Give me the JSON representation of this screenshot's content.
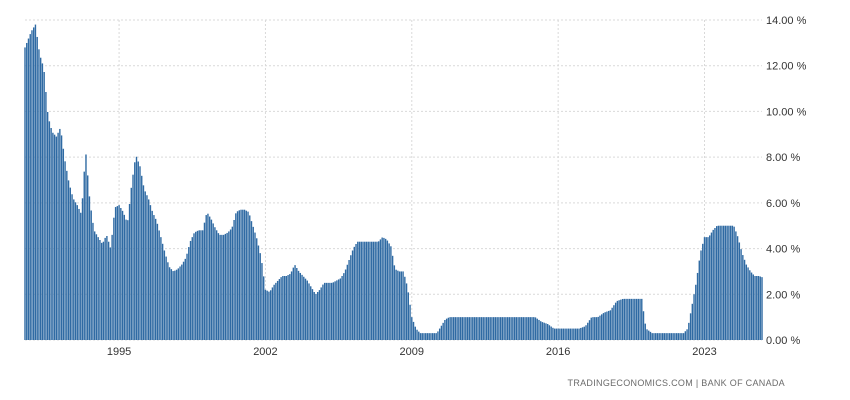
{
  "chart_data": {
    "type": "bar",
    "title": "",
    "xlabel": "",
    "ylabel": "",
    "ylim": [
      0,
      14
    ],
    "y_ticks": [
      "0.00 %",
      "2.00 %",
      "4.00 %",
      "6.00 %",
      "8.00 %",
      "10.00 %",
      "12.00 %",
      "14.00 %"
    ],
    "x_ticks": [
      "1995",
      "2002",
      "2009",
      "2016",
      "2023"
    ],
    "grid": true,
    "bar_color": "#2f6aa3",
    "x_start": 1990.5,
    "x_end": 2025.75,
    "series": [
      {
        "values": [
          [
            1990.5,
            12.8
          ],
          [
            1990.8,
            13.5
          ],
          [
            1991.0,
            13.8
          ],
          [
            1991.2,
            12.5
          ],
          [
            1991.4,
            11.9
          ],
          [
            1991.6,
            9.8
          ],
          [
            1991.8,
            9.1
          ],
          [
            1992.0,
            8.9
          ],
          [
            1992.2,
            9.3
          ],
          [
            1992.4,
            7.9
          ],
          [
            1992.6,
            6.9
          ],
          [
            1992.8,
            6.2
          ],
          [
            1993.0,
            5.9
          ],
          [
            1993.2,
            5.5
          ],
          [
            1993.4,
            8.3
          ],
          [
            1993.6,
            6.1
          ],
          [
            1993.8,
            4.8
          ],
          [
            1994.0,
            4.5
          ],
          [
            1994.2,
            4.2
          ],
          [
            1994.4,
            4.6
          ],
          [
            1994.6,
            4.0
          ],
          [
            1994.8,
            5.8
          ],
          [
            1995.0,
            5.9
          ],
          [
            1995.2,
            5.6
          ],
          [
            1995.4,
            5.1
          ],
          [
            1995.6,
            6.8
          ],
          [
            1995.8,
            8.1
          ],
          [
            1996.0,
            7.6
          ],
          [
            1996.2,
            6.6
          ],
          [
            1996.4,
            6.2
          ],
          [
            1996.6,
            5.6
          ],
          [
            1996.8,
            5.2
          ],
          [
            1997.0,
            4.5
          ],
          [
            1997.2,
            3.8
          ],
          [
            1997.4,
            3.2
          ],
          [
            1997.6,
            3.0
          ],
          [
            1997.8,
            3.1
          ],
          [
            1998.0,
            3.3
          ],
          [
            1998.2,
            3.6
          ],
          [
            1998.4,
            4.3
          ],
          [
            1998.6,
            4.7
          ],
          [
            1998.8,
            4.8
          ],
          [
            1999.0,
            4.8
          ],
          [
            1999.2,
            5.6
          ],
          [
            1999.4,
            5.3
          ],
          [
            1999.6,
            4.9
          ],
          [
            1999.8,
            4.6
          ],
          [
            2000.0,
            4.6
          ],
          [
            2000.2,
            4.7
          ],
          [
            2000.4,
            4.9
          ],
          [
            2000.6,
            5.6
          ],
          [
            2000.8,
            5.7
          ],
          [
            2001.0,
            5.7
          ],
          [
            2001.2,
            5.6
          ],
          [
            2001.4,
            5.0
          ],
          [
            2001.6,
            4.4
          ],
          [
            2001.8,
            3.6
          ],
          [
            2002.0,
            2.2
          ],
          [
            2002.2,
            2.1
          ],
          [
            2002.4,
            2.4
          ],
          [
            2002.6,
            2.6
          ],
          [
            2002.8,
            2.8
          ],
          [
            2003.0,
            2.8
          ],
          [
            2003.2,
            2.9
          ],
          [
            2003.4,
            3.3
          ],
          [
            2003.6,
            3.0
          ],
          [
            2003.8,
            2.8
          ],
          [
            2004.0,
            2.6
          ],
          [
            2004.2,
            2.3
          ],
          [
            2004.4,
            2.0
          ],
          [
            2004.6,
            2.2
          ],
          [
            2004.8,
            2.5
          ],
          [
            2005.0,
            2.5
          ],
          [
            2005.2,
            2.5
          ],
          [
            2005.4,
            2.6
          ],
          [
            2005.6,
            2.7
          ],
          [
            2005.8,
            3.0
          ],
          [
            2006.0,
            3.5
          ],
          [
            2006.2,
            4.0
          ],
          [
            2006.4,
            4.3
          ],
          [
            2006.6,
            4.3
          ],
          [
            2006.8,
            4.3
          ],
          [
            2007.0,
            4.3
          ],
          [
            2007.2,
            4.3
          ],
          [
            2007.4,
            4.3
          ],
          [
            2007.6,
            4.5
          ],
          [
            2007.8,
            4.4
          ],
          [
            2008.0,
            4.1
          ],
          [
            2008.2,
            3.1
          ],
          [
            2008.4,
            3.0
          ],
          [
            2008.6,
            3.0
          ],
          [
            2008.8,
            2.3
          ],
          [
            2009.0,
            1.0
          ],
          [
            2009.2,
            0.5
          ],
          [
            2009.4,
            0.3
          ],
          [
            2009.6,
            0.3
          ],
          [
            2009.8,
            0.3
          ],
          [
            2010.0,
            0.3
          ],
          [
            2010.2,
            0.3
          ],
          [
            2010.4,
            0.6
          ],
          [
            2010.6,
            0.9
          ],
          [
            2010.8,
            1.0
          ],
          [
            2011.0,
            1.0
          ],
          [
            2011.3,
            1.0
          ],
          [
            2011.6,
            1.0
          ],
          [
            2011.9,
            1.0
          ],
          [
            2012.2,
            1.0
          ],
          [
            2012.5,
            1.0
          ],
          [
            2012.8,
            1.0
          ],
          [
            2013.1,
            1.0
          ],
          [
            2013.4,
            1.0
          ],
          [
            2013.7,
            1.0
          ],
          [
            2014.0,
            1.0
          ],
          [
            2014.3,
            1.0
          ],
          [
            2014.6,
            1.0
          ],
          [
            2014.9,
            1.0
          ],
          [
            2015.2,
            0.8
          ],
          [
            2015.5,
            0.7
          ],
          [
            2015.8,
            0.5
          ],
          [
            2016.1,
            0.5
          ],
          [
            2016.4,
            0.5
          ],
          [
            2016.7,
            0.5
          ],
          [
            2017.0,
            0.5
          ],
          [
            2017.3,
            0.6
          ],
          [
            2017.6,
            1.0
          ],
          [
            2017.9,
            1.0
          ],
          [
            2018.2,
            1.2
          ],
          [
            2018.5,
            1.3
          ],
          [
            2018.8,
            1.7
          ],
          [
            2019.1,
            1.8
          ],
          [
            2019.4,
            1.8
          ],
          [
            2019.7,
            1.8
          ],
          [
            2020.0,
            1.8
          ],
          [
            2020.2,
            0.5
          ],
          [
            2020.5,
            0.3
          ],
          [
            2020.8,
            0.3
          ],
          [
            2021.1,
            0.3
          ],
          [
            2021.4,
            0.3
          ],
          [
            2021.7,
            0.3
          ],
          [
            2022.0,
            0.3
          ],
          [
            2022.2,
            0.5
          ],
          [
            2022.4,
            1.5
          ],
          [
            2022.6,
            2.5
          ],
          [
            2022.8,
            3.8
          ],
          [
            2023.0,
            4.5
          ],
          [
            2023.2,
            4.5
          ],
          [
            2023.4,
            4.8
          ],
          [
            2023.6,
            5.0
          ],
          [
            2023.8,
            5.0
          ],
          [
            2024.0,
            5.0
          ],
          [
            2024.2,
            5.0
          ],
          [
            2024.4,
            5.0
          ],
          [
            2024.6,
            4.5
          ],
          [
            2024.8,
            3.8
          ],
          [
            2025.0,
            3.3
          ],
          [
            2025.2,
            3.0
          ],
          [
            2025.4,
            2.8
          ],
          [
            2025.6,
            2.8
          ],
          [
            2025.75,
            2.75
          ]
        ]
      }
    ]
  },
  "credit": "TRADINGECONOMICS.COM  |  BANK OF CANADA"
}
